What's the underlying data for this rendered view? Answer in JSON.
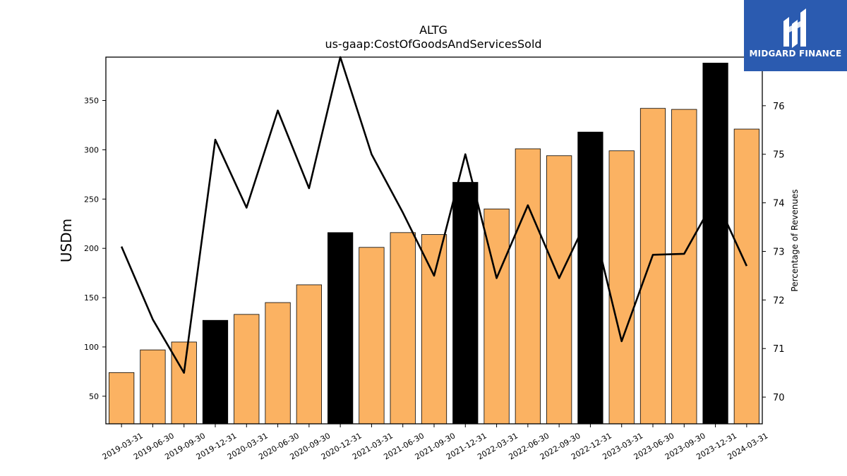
{
  "chart_data": {
    "type": "bar",
    "title": "ALTG",
    "subtitle": "us-gaap:CostOfGoodsAndServicesSold",
    "ylabel": "USDm",
    "y2label": "Percentage of Revenues",
    "categories": [
      "2019-03-31",
      "2019-06-30",
      "2019-09-30",
      "2019-12-31",
      "2020-03-31",
      "2020-06-30",
      "2020-09-30",
      "2020-12-31",
      "2021-03-31",
      "2021-06-30",
      "2021-09-30",
      "2021-12-31",
      "2022-03-31",
      "2022-06-30",
      "2022-09-30",
      "2022-12-31",
      "2023-03-31",
      "2023-06-30",
      "2023-09-30",
      "2023-12-31",
      "2024-03-31"
    ],
    "series": [
      {
        "type": "bar",
        "axis": "left",
        "values": [
          74,
          97,
          105,
          127,
          133,
          145,
          163,
          216,
          201,
          216,
          214,
          267,
          240,
          301,
          294,
          318,
          299,
          342,
          341,
          388,
          321
        ],
        "highlight": [
          false,
          false,
          false,
          true,
          false,
          false,
          false,
          true,
          false,
          false,
          false,
          true,
          false,
          false,
          false,
          true,
          false,
          false,
          false,
          true,
          false
        ],
        "color": "#fbb262",
        "highlight_color": "#000000"
      },
      {
        "type": "line",
        "axis": "right",
        "values": [
          73.1,
          71.6,
          70.5,
          75.3,
          73.9,
          75.9,
          74.3,
          77.0,
          75.0,
          73.8,
          72.5,
          75.0,
          72.45,
          73.95,
          72.45,
          73.8,
          71.15,
          72.93,
          72.95,
          74.1,
          72.7
        ],
        "color": "#000000"
      }
    ],
    "ylim": [
      22,
      394
    ],
    "yticks": [
      50,
      100,
      150,
      200,
      250,
      300,
      350
    ],
    "y2lim": [
      69.45,
      77.0
    ],
    "y2ticks": [
      70,
      71,
      72,
      73,
      74,
      75,
      76
    ],
    "grid": false
  },
  "logo": {
    "text": "MIDGARD FINANCE",
    "color": "#2b5bb0"
  }
}
